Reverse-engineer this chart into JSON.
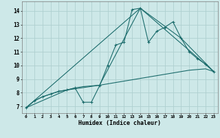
{
  "xlabel": "Humidex (Indice chaleur)",
  "xlim": [
    -0.5,
    23.5
  ],
  "ylim": [
    6.5,
    14.7
  ],
  "xticks": [
    0,
    1,
    2,
    3,
    4,
    5,
    6,
    7,
    8,
    9,
    10,
    11,
    12,
    13,
    14,
    15,
    16,
    17,
    18,
    19,
    20,
    21,
    22,
    23
  ],
  "yticks": [
    7,
    8,
    9,
    10,
    11,
    12,
    13,
    14
  ],
  "bg_color": "#cde8e8",
  "grid_color": "#aed0d0",
  "line_color": "#1a6b6b",
  "line1_x": [
    0,
    1,
    2,
    3,
    4,
    5,
    6,
    7,
    8,
    9,
    10,
    11,
    12,
    13,
    14,
    15,
    16,
    17,
    18,
    19,
    20,
    21,
    22,
    23
  ],
  "line1_y": [
    6.9,
    7.4,
    7.7,
    7.9,
    8.1,
    8.2,
    8.35,
    8.45,
    8.5,
    8.55,
    8.65,
    8.75,
    8.85,
    8.95,
    9.05,
    9.15,
    9.25,
    9.35,
    9.45,
    9.55,
    9.65,
    9.7,
    9.75,
    9.55
  ],
  "line2_x": [
    0,
    1,
    2,
    3,
    4,
    5,
    6,
    7,
    8,
    9,
    10,
    11,
    12,
    13,
    14,
    15,
    16,
    17,
    18,
    19,
    20,
    21,
    22,
    23
  ],
  "line2_y": [
    6.9,
    7.4,
    7.7,
    7.9,
    8.1,
    8.2,
    8.35,
    7.3,
    7.3,
    8.5,
    10.0,
    11.5,
    11.7,
    14.1,
    14.2,
    11.7,
    12.5,
    12.8,
    13.2,
    12.0,
    11.0,
    10.5,
    10.1,
    9.55
  ],
  "line3_x": [
    0,
    5,
    9,
    14,
    19,
    23
  ],
  "line3_y": [
    6.9,
    8.2,
    8.55,
    14.2,
    12.0,
    9.55
  ],
  "line4_x": [
    0,
    14,
    23
  ],
  "line4_y": [
    6.9,
    14.2,
    9.55
  ]
}
